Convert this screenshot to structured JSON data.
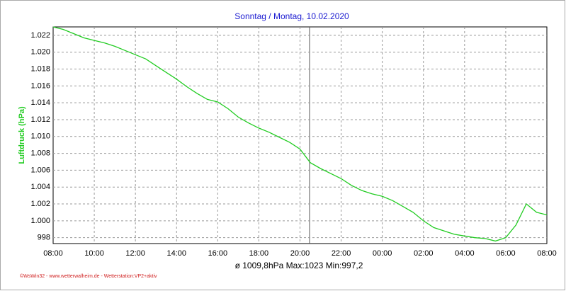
{
  "chart_data": {
    "type": "line",
    "title": "Sonntag / Montag, 10.02.2020",
    "y_label": "Luftdruck  (hPa)",
    "summary": "ø 1009,8hPa  Max:1023  Min:997,2",
    "footer": "©WsWin32 - www.wetterwalheim.de - Wetterstation:VP2+aktiv",
    "x": [
      "08:00",
      "08:30",
      "09:00",
      "09:30",
      "10:00",
      "10:30",
      "11:00",
      "11:30",
      "12:00",
      "12:30",
      "13:00",
      "13:30",
      "14:00",
      "14:30",
      "15:00",
      "15:30",
      "16:00",
      "16:30",
      "17:00",
      "17:30",
      "18:00",
      "18:30",
      "19:00",
      "19:30",
      "20:00",
      "20:30",
      "21:00",
      "21:30",
      "22:00",
      "22:30",
      "23:00",
      "23:30",
      "00:00",
      "00:30",
      "01:00",
      "01:30",
      "02:00",
      "02:30",
      "03:00",
      "03:30",
      "04:00",
      "04:30",
      "05:00",
      "05:30",
      "06:00",
      "06:30",
      "07:00",
      "07:30",
      "08:00"
    ],
    "series": [
      {
        "name": "Luftdruck",
        "color": "#22cc22",
        "values": [
          1023.0,
          1022.7,
          1022.2,
          1021.7,
          1021.4,
          1021.1,
          1020.7,
          1020.2,
          1019.7,
          1019.2,
          1018.4,
          1017.6,
          1016.8,
          1015.9,
          1015.1,
          1014.4,
          1014.1,
          1013.3,
          1012.3,
          1011.6,
          1011.0,
          1010.5,
          1009.9,
          1009.3,
          1008.5,
          1006.9,
          1006.2,
          1005.6,
          1005.0,
          1004.2,
          1003.6,
          1003.2,
          1002.9,
          1002.4,
          1001.7,
          1001.0,
          1000.0,
          999.2,
          998.8,
          998.4,
          998.2,
          998.0,
          997.9,
          997.6,
          998.0,
          999.5,
          1002.0,
          1001.0,
          1000.7
        ]
      }
    ],
    "xticks": [
      "08:00",
      "10:00",
      "12:00",
      "14:00",
      "16:00",
      "18:00",
      "20:00",
      "22:00",
      "00:00",
      "02:00",
      "04:00",
      "06:00",
      "08:00"
    ],
    "ylim": [
      997.3,
      1023.0
    ],
    "yticks": [
      998,
      {
        "value": 1000,
        "label": "1.000"
      },
      {
        "value": 1002,
        "label": "1.002"
      },
      {
        "value": 1004,
        "label": "1.004"
      },
      {
        "value": 1006,
        "label": "1.006"
      },
      {
        "value": 1008,
        "label": "1.008"
      },
      {
        "value": 1010,
        "label": "1.010"
      },
      {
        "value": 1012,
        "label": "1.012"
      },
      {
        "value": 1014,
        "label": "1.014"
      },
      {
        "value": 1016,
        "label": "1.016"
      },
      {
        "value": 1018,
        "label": "1.018"
      },
      {
        "value": 1020,
        "label": "1.020"
      },
      {
        "value": 1022,
        "label": "1.022"
      }
    ],
    "grid": true
  }
}
